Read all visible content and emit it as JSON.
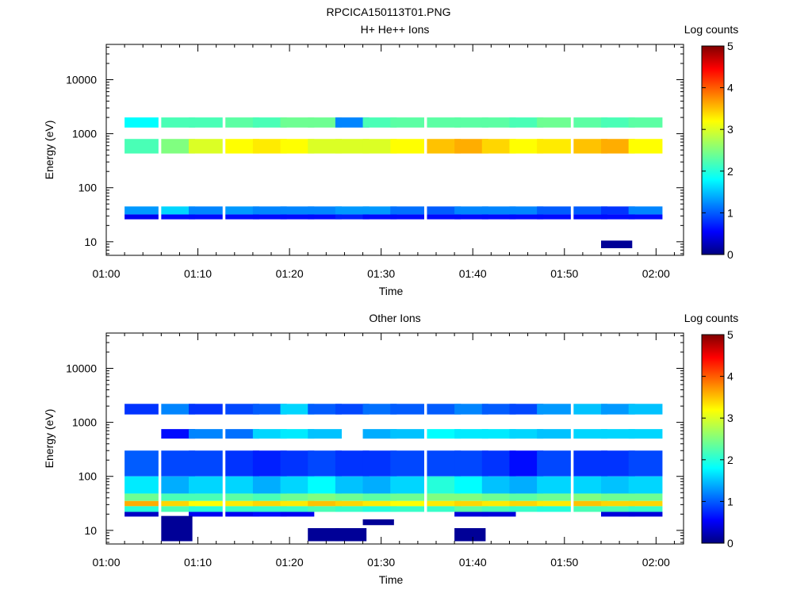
{
  "figure": {
    "title": "RPCICA150113T01.PNG"
  },
  "chart_data": [
    {
      "type": "heatmap",
      "title": "H+ He++ Ions",
      "xlabel": "Time",
      "ylabel": "Energy (eV)",
      "yscale": "log",
      "ylim": [
        5.6,
        45000
      ],
      "xlim": [
        "01:00",
        "02:03"
      ],
      "x_ticks": [
        "01:00",
        "01:10",
        "01:20",
        "01:30",
        "01:40",
        "01:50",
        "02:00"
      ],
      "y_ticks": [
        "10",
        "100",
        "1000",
        "10000"
      ],
      "colorbar": {
        "label": "Log counts",
        "min": 0,
        "max": 5,
        "ticks": [
          "0",
          "1",
          "2",
          "3",
          "4",
          "5"
        ]
      },
      "time_bins": [
        "01:02",
        "01:06",
        "01:09",
        "01:13",
        "01:16",
        "01:19",
        "01:22",
        "01:25",
        "01:28",
        "01:31",
        "01:35",
        "01:38",
        "01:41",
        "01:44",
        "01:47",
        "01:51",
        "01:54",
        "01:57"
      ],
      "bands": [
        {
          "e_low": 1300,
          "e_high": 2000,
          "log_counts": [
            1.8,
            2.2,
            2.2,
            2.3,
            2.2,
            2.4,
            2.4,
            1.2,
            2.2,
            2.3,
            2.3,
            2.3,
            2.3,
            2.2,
            2.4,
            2.3,
            2.2,
            2.3
          ]
        },
        {
          "e_low": 430,
          "e_high": 800,
          "log_counts": [
            2.2,
            2.5,
            3.0,
            3.2,
            3.3,
            3.2,
            3.0,
            3.0,
            3.0,
            3.2,
            3.5,
            3.6,
            3.4,
            3.2,
            3.3,
            3.5,
            3.6,
            3.2
          ]
        },
        {
          "e_low": 32,
          "e_high": 45,
          "log_counts": [
            1.3,
            1.6,
            1.2,
            1.3,
            1.2,
            1.2,
            1.2,
            1.3,
            1.3,
            1.1,
            1.0,
            1.2,
            1.2,
            1.2,
            1.0,
            1.0,
            0.8,
            1.2
          ]
        },
        {
          "e_low": 26,
          "e_high": 32,
          "log_counts": [
            0.5,
            0.6,
            0.6,
            0.6,
            0.6,
            0.6,
            0.6,
            0.7,
            0.6,
            0.6,
            0.6,
            0.6,
            0.6,
            0.6,
            0.6,
            0.6,
            0.6,
            0.6
          ]
        }
      ],
      "extra_cells": [
        {
          "time": "01:54",
          "e_low": 7.6,
          "e_high": 10.5,
          "log_counts": 0.1
        }
      ]
    },
    {
      "type": "heatmap",
      "title": "Other Ions",
      "xlabel": "Time",
      "ylabel": "Energy (eV)",
      "yscale": "log",
      "ylim": [
        5.6,
        45000
      ],
      "xlim": [
        "01:00",
        "02:03"
      ],
      "x_ticks": [
        "01:00",
        "01:10",
        "01:20",
        "01:30",
        "01:40",
        "01:50",
        "02:00"
      ],
      "y_ticks": [
        "10",
        "100",
        "1000",
        "10000"
      ],
      "colorbar": {
        "label": "Log counts",
        "min": 0,
        "max": 5,
        "ticks": [
          "0",
          "1",
          "2",
          "3",
          "4",
          "5"
        ]
      },
      "time_bins": [
        "01:02",
        "01:06",
        "01:09",
        "01:13",
        "01:16",
        "01:19",
        "01:22",
        "01:25",
        "01:28",
        "01:31",
        "01:35",
        "01:38",
        "01:41",
        "01:44",
        "01:47",
        "01:51",
        "01:54",
        "01:57"
      ],
      "bands": [
        {
          "e_low": 1400,
          "e_high": 2200,
          "log_counts": [
            0.8,
            1.2,
            0.8,
            0.9,
            1.0,
            1.6,
            1.0,
            0.9,
            1.1,
            1.0,
            1.0,
            1.2,
            1.0,
            0.9,
            1.3,
            1.5,
            1.3,
            1.5
          ]
        },
        {
          "e_low": 500,
          "e_high": 750,
          "log_counts": [
            0.0,
            0.6,
            1.2,
            1.1,
            1.6,
            1.7,
            1.5,
            0.0,
            1.4,
            1.5,
            1.8,
            1.7,
            1.7,
            1.6,
            1.5,
            1.6,
            1.6,
            1.6
          ]
        },
        {
          "e_low": 100,
          "e_high": 300,
          "log_counts": [
            1.0,
            0.9,
            0.9,
            0.8,
            0.7,
            0.8,
            0.9,
            0.8,
            0.8,
            0.9,
            0.9,
            0.9,
            0.8,
            0.6,
            0.9,
            0.8,
            0.8,
            0.9
          ]
        },
        {
          "e_low": 48,
          "e_high": 100,
          "log_counts": [
            1.7,
            1.4,
            1.6,
            1.6,
            1.4,
            1.6,
            1.8,
            1.5,
            1.4,
            1.6,
            2.0,
            1.8,
            1.5,
            1.4,
            1.6,
            1.6,
            1.5,
            1.6
          ]
        },
        {
          "e_low": 35,
          "e_high": 48,
          "log_counts": [
            2.4,
            2.2,
            2.2,
            2.3,
            2.2,
            2.4,
            2.5,
            2.4,
            2.3,
            2.4,
            2.5,
            2.5,
            2.4,
            2.3,
            2.4,
            2.5,
            2.4,
            2.4
          ]
        },
        {
          "e_low": 28,
          "e_high": 35,
          "log_counts": [
            3.6,
            3.4,
            3.2,
            3.3,
            3.4,
            3.3,
            3.5,
            3.4,
            3.3,
            3.2,
            3.3,
            3.4,
            3.3,
            3.4,
            3.3,
            3.5,
            3.4,
            3.4
          ]
        },
        {
          "e_low": 22,
          "e_high": 28,
          "log_counts": [
            2.0,
            2.2,
            2.0,
            2.1,
            2.1,
            2.1,
            2.2,
            2.1,
            2.0,
            2.1,
            2.1,
            2.3,
            2.2,
            2.1,
            2.0,
            2.2,
            2.2,
            2.1
          ]
        },
        {
          "e_low": 18,
          "e_high": 22,
          "log_counts": [
            0.3,
            0.0,
            0.5,
            0.5,
            0.6,
            0.5,
            0.0,
            0.0,
            0.0,
            0.0,
            0.0,
            0.4,
            0.4,
            0.0,
            0.0,
            0.0,
            0.4,
            0.4
          ]
        }
      ],
      "extra_cells": [
        {
          "time": "01:06",
          "e_low": 6.3,
          "e_high": 18.5,
          "log_counts": 0.1
        },
        {
          "time": "01:22",
          "e_low": 6.3,
          "e_high": 11,
          "log_counts": 0.1
        },
        {
          "time": "01:25",
          "e_low": 6.3,
          "e_high": 11,
          "log_counts": 0.1
        },
        {
          "time": "01:28",
          "e_low": 12.5,
          "e_high": 16,
          "log_counts": 0.1
        },
        {
          "time": "01:38",
          "e_low": 6.3,
          "e_high": 11,
          "log_counts": 0.1
        }
      ]
    }
  ]
}
